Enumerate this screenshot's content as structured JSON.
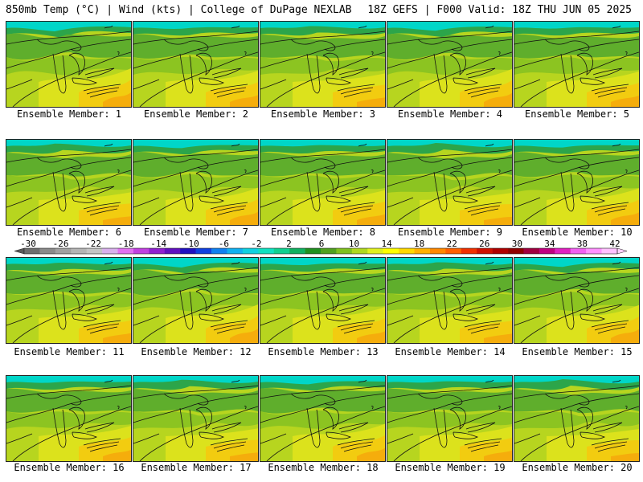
{
  "header": {
    "left": "850mb Temp (°C) | Wind (kts) | College of DuPage NEXLAB",
    "right": "18Z GEFS | F000 Valid: 18Z THU JUN 05 2025"
  },
  "panels": [
    {
      "label": "Ensemble Member: 1"
    },
    {
      "label": "Ensemble Member: 2"
    },
    {
      "label": "Ensemble Member: 3"
    },
    {
      "label": "Ensemble Member: 4"
    },
    {
      "label": "Ensemble Member: 5"
    },
    {
      "label": "Ensemble Member: 6"
    },
    {
      "label": "Ensemble Member: 7"
    },
    {
      "label": "Ensemble Member: 8"
    },
    {
      "label": "Ensemble Member: 9"
    },
    {
      "label": "Ensemble Member: 10"
    },
    {
      "label": "Ensemble Member: 11"
    },
    {
      "label": "Ensemble Member: 12"
    },
    {
      "label": "Ensemble Member: 13"
    },
    {
      "label": "Ensemble Member: 14"
    },
    {
      "label": "Ensemble Member: 15"
    },
    {
      "label": "Ensemble Member: 16"
    },
    {
      "label": "Ensemble Member: 17"
    },
    {
      "label": "Ensemble Member: 18"
    },
    {
      "label": "Ensemble Member: 19"
    },
    {
      "label": "Ensemble Member: 20"
    }
  ],
  "colorbar": {
    "ticks": [
      "-30",
      "-26",
      "-22",
      "-18",
      "-14",
      "-10",
      "-6",
      "-2",
      "2",
      "6",
      "10",
      "14",
      "18",
      "22",
      "26",
      "30",
      "34",
      "38",
      "42"
    ],
    "colors": [
      "#6e6e6e",
      "#8a8a8a",
      "#a0a0a0",
      "#b4b4b4",
      "#c4c4c4",
      "#d8b0ec",
      "#e070f0",
      "#c040e0",
      "#9020d0",
      "#6010c0",
      "#2010c0",
      "#1040e0",
      "#1080f0",
      "#10b0f0",
      "#10d0e0",
      "#10e0c0",
      "#10d090",
      "#10b060",
      "#209020",
      "#50a020",
      "#80c020",
      "#b0d820",
      "#e0f020",
      "#ffff00",
      "#ffd800",
      "#ffb000",
      "#ff8800",
      "#ff6000",
      "#f03000",
      "#d01000",
      "#b00000",
      "#900000",
      "#a00040",
      "#c00080",
      "#e020c0",
      "#f060f0",
      "#ff90ff",
      "#ffc0ff"
    ]
  },
  "map": {
    "field_colors": [
      "#00d6c8",
      "#2ca54a",
      "#5fae2c",
      "#8cc421",
      "#b7d51f",
      "#dce21c",
      "#f2cc10",
      "#f5ad0c"
    ]
  }
}
